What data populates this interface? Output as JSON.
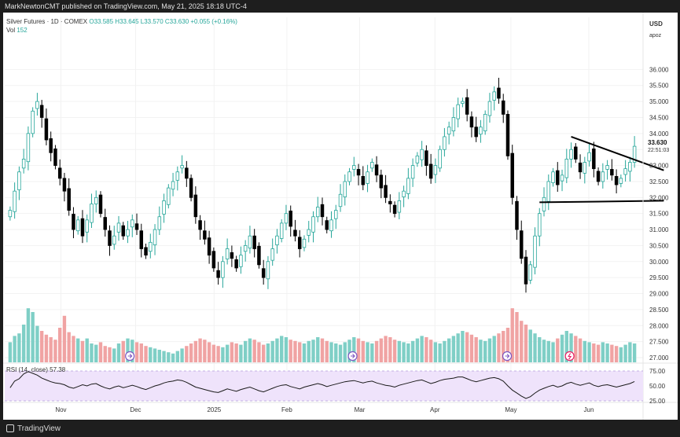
{
  "header": {
    "publisher_line": "MarkNewtonCMT published on TradingView.com, May 21, 2025 18:18 UTC-4"
  },
  "legend": {
    "symbol": "Silver Futures · 1D · COMEX",
    "ohlc": "O33.585  H33.645  L33.570  C33.630  +0.055 (+0.16%)",
    "vol_label": "Vol",
    "vol_value": "152"
  },
  "price_axis": {
    "currency": "USD",
    "mode": "apoz",
    "last_price": "33.630",
    "countdown": "22:51:03"
  },
  "rsi_legend": {
    "label": "RSI (14, close)",
    "value": "57.38"
  },
  "footer": {
    "brand": "TradingView"
  },
  "colors": {
    "up": "#26a69a",
    "down": "#000000",
    "vol_up": "#7fcfc6",
    "vol_down": "#f0a3a3",
    "rsi_line": "#1a1a1a",
    "rsi_band": "#efe3fb"
  },
  "chart_data": {
    "type": "candlestick",
    "title": "Silver Futures · 1D · COMEX",
    "ylabel": "USD",
    "ylim": [
      27.0,
      36.5
    ],
    "price_ticks": [
      "36.000",
      "35.500",
      "35.000",
      "34.500",
      "34.000",
      "33.500",
      "33.000",
      "32.500",
      "32.000",
      "31.500",
      "31.000",
      "30.500",
      "30.000",
      "29.500",
      "29.000",
      "28.500",
      "28.000",
      "27.500",
      "27.000"
    ],
    "x_ticks": [
      "Nov",
      "Dec",
      "2025",
      "Feb",
      "Mar",
      "Apr",
      "May",
      "Jun"
    ],
    "close": [
      31.6,
      32.2,
      32.8,
      33.2,
      34.0,
      34.7,
      35.0,
      34.5,
      33.8,
      33.4,
      33.0,
      32.6,
      32.2,
      31.6,
      31.0,
      31.3,
      30.8,
      31.3,
      31.8,
      32.0,
      31.5,
      31.0,
      30.5,
      30.8,
      31.2,
      30.8,
      31.0,
      31.3,
      31.0,
      30.4,
      30.2,
      30.6,
      31.0,
      31.4,
      31.9,
      32.3,
      32.5,
      32.8,
      33.0,
      32.6,
      32.0,
      31.4,
      31.0,
      30.7,
      30.2,
      29.8,
      29.5,
      30.0,
      30.4,
      30.1,
      29.8,
      30.2,
      30.5,
      30.8,
      30.4,
      29.9,
      29.5,
      30.0,
      30.4,
      30.8,
      31.2,
      31.5,
      31.1,
      30.8,
      30.4,
      30.7,
      31.0,
      31.4,
      31.7,
      31.4,
      31.0,
      31.3,
      31.6,
      32.1,
      32.5,
      32.8,
      33.0,
      32.7,
      32.4,
      32.8,
      33.1,
      32.7,
      32.3,
      32.0,
      31.8,
      31.5,
      31.9,
      32.2,
      32.6,
      33.0,
      33.3,
      33.5,
      33.0,
      32.6,
      33.0,
      33.5,
      33.9,
      34.2,
      34.5,
      34.9,
      35.0,
      34.6,
      34.2,
      33.9,
      34.2,
      34.6,
      35.0,
      35.3,
      35.1,
      34.6,
      33.3,
      32.0,
      31.0,
      30.1,
      29.3,
      29.9,
      30.8,
      31.5,
      32.0,
      32.5,
      32.8,
      32.4,
      32.7,
      33.2,
      33.5,
      33.2,
      32.8,
      33.1,
      33.4,
      32.9,
      32.5,
      32.8,
      33.0,
      32.7,
      32.4,
      32.6,
      32.9,
      33.1,
      33.6
    ],
    "volume": [
      0.32,
      0.42,
      0.46,
      0.6,
      0.86,
      0.8,
      0.58,
      0.5,
      0.44,
      0.4,
      0.36,
      0.55,
      0.74,
      0.48,
      0.42,
      0.38,
      0.34,
      0.38,
      0.3,
      0.28,
      0.32,
      0.26,
      0.24,
      0.22,
      0.3,
      0.34,
      0.38,
      0.36,
      0.32,
      0.3,
      0.26,
      0.24,
      0.22,
      0.2,
      0.18,
      0.16,
      0.14,
      0.18,
      0.22,
      0.26,
      0.3,
      0.34,
      0.38,
      0.36,
      0.32,
      0.28,
      0.26,
      0.24,
      0.28,
      0.32,
      0.3,
      0.28,
      0.34,
      0.38,
      0.36,
      0.32,
      0.28,
      0.3,
      0.34,
      0.38,
      0.42,
      0.4,
      0.36,
      0.34,
      0.32,
      0.3,
      0.34,
      0.36,
      0.4,
      0.38,
      0.34,
      0.32,
      0.3,
      0.28,
      0.32,
      0.36,
      0.4,
      0.38,
      0.34,
      0.32,
      0.3,
      0.34,
      0.38,
      0.42,
      0.4,
      0.36,
      0.34,
      0.32,
      0.3,
      0.34,
      0.38,
      0.42,
      0.4,
      0.36,
      0.32,
      0.3,
      0.34,
      0.38,
      0.42,
      0.46,
      0.5,
      0.48,
      0.44,
      0.4,
      0.36,
      0.34,
      0.38,
      0.42,
      0.46,
      0.5,
      0.55,
      0.86,
      0.8,
      0.66,
      0.6,
      0.52,
      0.46,
      0.4,
      0.36,
      0.34,
      0.32,
      0.38,
      0.44,
      0.5,
      0.46,
      0.42,
      0.38,
      0.34,
      0.32,
      0.3,
      0.28,
      0.32,
      0.3,
      0.28,
      0.26,
      0.24,
      0.28,
      0.32,
      0.3
    ],
    "volume_scale_note_hidden": "",
    "rsi_ylim": [
      25,
      75
    ],
    "rsi_ticks": [
      "75.00",
      "50.00",
      "25.00"
    ],
    "rsi": [
      47,
      58,
      62,
      70,
      74,
      71,
      68,
      63,
      60,
      57,
      55,
      54,
      52,
      48,
      46,
      49,
      52,
      50,
      53,
      54,
      50,
      47,
      45,
      48,
      50,
      47,
      49,
      51,
      49,
      46,
      44,
      47,
      50,
      52,
      55,
      57,
      58,
      60,
      59,
      56,
      52,
      48,
      46,
      44,
      42,
      40,
      39,
      42,
      45,
      43,
      41,
      44,
      46,
      48,
      45,
      42,
      40,
      43,
      46,
      49,
      51,
      52,
      49,
      47,
      45,
      48,
      50,
      52,
      54,
      52,
      49,
      51,
      53,
      55,
      57,
      58,
      59,
      57,
      55,
      57,
      58,
      55,
      53,
      51,
      50,
      48,
      51,
      53,
      55,
      57,
      59,
      60,
      57,
      54,
      56,
      59,
      61,
      62,
      63,
      65,
      65,
      62,
      59,
      57,
      59,
      61,
      63,
      64,
      62,
      58,
      50,
      43,
      38,
      33,
      29,
      32,
      38,
      43,
      46,
      49,
      51,
      48,
      50,
      54,
      56,
      53,
      51,
      53,
      55,
      51,
      49,
      51,
      52,
      50,
      48,
      50,
      52,
      54,
      57.38
    ],
    "trendline_upper": {
      "from": [
        124,
        33.9
      ],
      "to": [
        141,
        32.85
      ]
    },
    "trendline_lower": {
      "from": [
        117,
        31.85
      ],
      "to": [
        141,
        31.9
      ]
    }
  }
}
